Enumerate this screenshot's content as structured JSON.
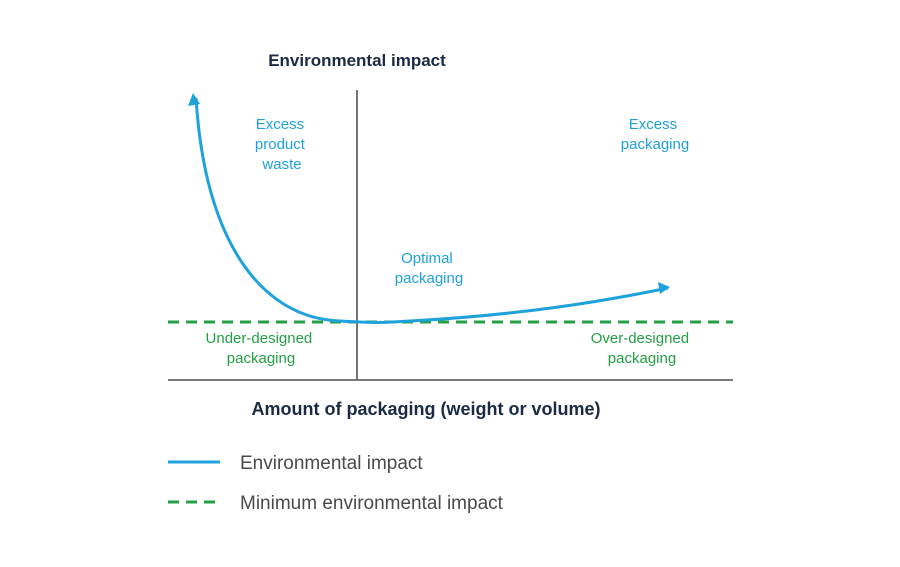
{
  "titles": {
    "y_axis": "Environmental impact",
    "x_axis": "Amount of packaging (weight or volume)"
  },
  "regions": {
    "excess_product_waste": [
      "Excess",
      "product",
      "waste"
    ],
    "excess_packaging": [
      "Excess",
      "packaging"
    ],
    "optimal_packaging": [
      "Optimal",
      "packaging"
    ],
    "under_designed": [
      "Under-designed",
      "packaging"
    ],
    "over_designed": [
      "Over-designed",
      "packaging"
    ]
  },
  "legend": {
    "impact": "Environmental impact",
    "minimum": "Minimum environmental impact"
  },
  "colors": {
    "curve": "#1fa1dc",
    "minimum_line": "#23a045",
    "axis": "#666666",
    "title": "#1b2a44"
  }
}
